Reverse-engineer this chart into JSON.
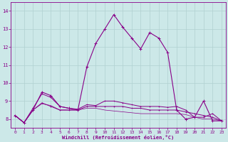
{
  "xlabel": "Windchill (Refroidissement éolien,°C)",
  "background_color": "#cce8e8",
  "grid_color": "#b0d0d0",
  "line_color": "#880088",
  "x_ticks": [
    0,
    1,
    2,
    3,
    4,
    5,
    6,
    7,
    8,
    9,
    10,
    11,
    12,
    13,
    14,
    15,
    16,
    17,
    18,
    19,
    20,
    21,
    22,
    23
  ],
  "y_ticks": [
    8,
    9,
    10,
    11,
    12,
    13,
    14
  ],
  "ylim": [
    7.5,
    14.5
  ],
  "xlim": [
    -0.5,
    23.5
  ],
  "series1_x": [
    0,
    1,
    2,
    3,
    4,
    5,
    6,
    7,
    8,
    9,
    10,
    11,
    12,
    13,
    14,
    15,
    16,
    17,
    18,
    19,
    20,
    21,
    22,
    23
  ],
  "series1_y": [
    8.2,
    7.8,
    8.5,
    9.5,
    9.3,
    8.7,
    8.6,
    8.5,
    10.9,
    12.2,
    13.0,
    13.8,
    13.1,
    12.5,
    11.9,
    12.8,
    12.5,
    11.7,
    8.5,
    8.0,
    8.1,
    9.0,
    7.9,
    7.9
  ],
  "series2_x": [
    0,
    1,
    2,
    3,
    4,
    5,
    6,
    7,
    8,
    9,
    10,
    11,
    12,
    13,
    14,
    15,
    16,
    17,
    18,
    19,
    20,
    21,
    22,
    23
  ],
  "series2_y": [
    8.2,
    7.8,
    8.5,
    8.9,
    8.7,
    8.5,
    8.5,
    8.5,
    8.7,
    8.7,
    8.7,
    8.7,
    8.7,
    8.6,
    8.6,
    8.5,
    8.5,
    8.5,
    8.5,
    8.4,
    8.3,
    8.2,
    8.1,
    7.9
  ],
  "series3_x": [
    0,
    1,
    2,
    3,
    4,
    5,
    6,
    7,
    8,
    9,
    10,
    11,
    12,
    13,
    14,
    15,
    16,
    17,
    18,
    19,
    20,
    21,
    22,
    23
  ],
  "series3_y": [
    8.2,
    7.8,
    8.6,
    9.4,
    9.2,
    8.7,
    8.6,
    8.55,
    8.8,
    8.75,
    9.0,
    9.0,
    8.9,
    8.8,
    8.7,
    8.7,
    8.7,
    8.65,
    8.7,
    8.5,
    8.1,
    8.1,
    8.3,
    7.9
  ],
  "series4_x": [
    0,
    1,
    2,
    3,
    4,
    5,
    6,
    7,
    8,
    9,
    10,
    11,
    12,
    13,
    14,
    15,
    16,
    17,
    18,
    19,
    20,
    21,
    22,
    23
  ],
  "series4_y": [
    8.2,
    7.8,
    8.5,
    8.85,
    8.75,
    8.5,
    8.5,
    8.5,
    8.6,
    8.6,
    8.5,
    8.45,
    8.4,
    8.35,
    8.3,
    8.3,
    8.3,
    8.3,
    8.3,
    8.25,
    8.1,
    8.0,
    8.0,
    7.9
  ]
}
